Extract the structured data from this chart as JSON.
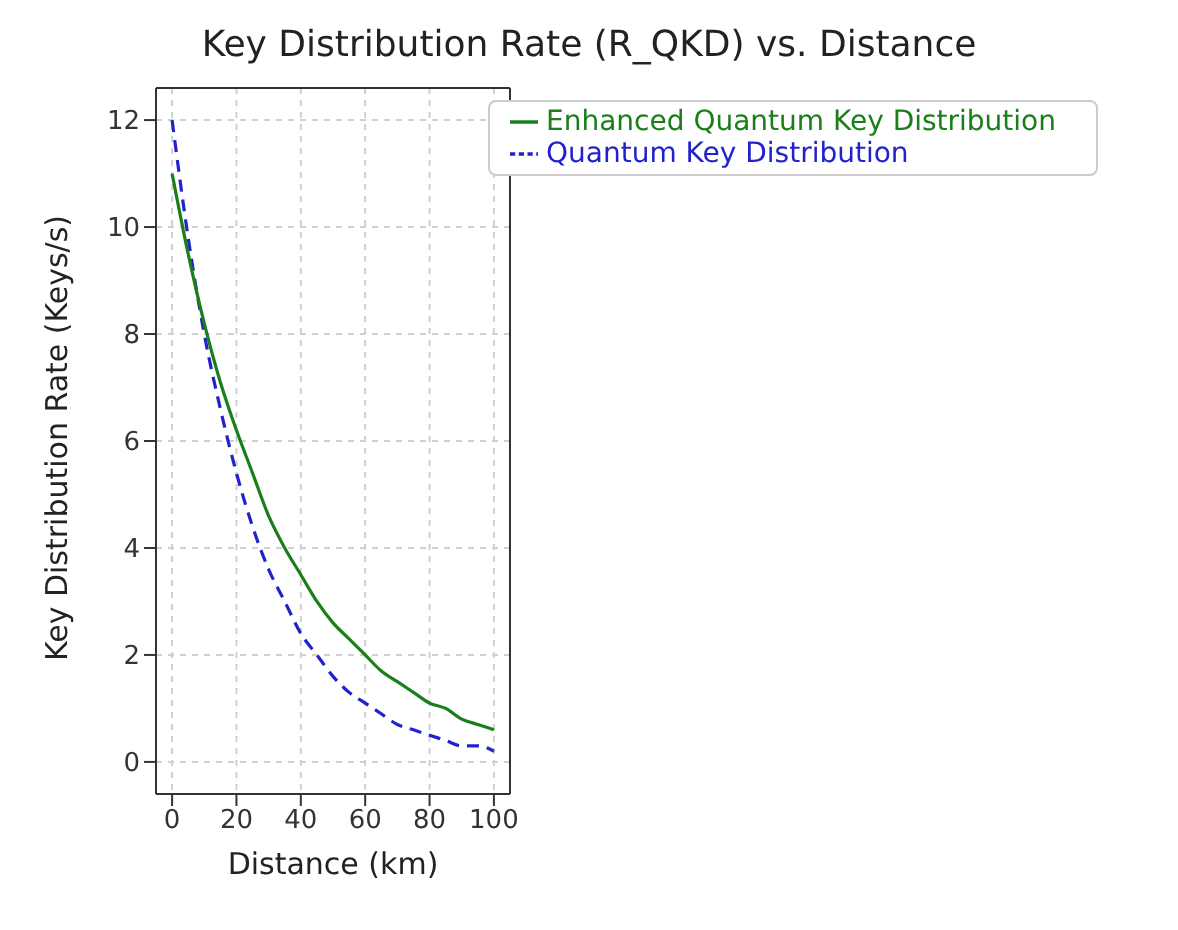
{
  "chart_data": {
    "type": "line",
    "title": "Key Distribution Rate (R_QKD) vs. Distance",
    "xlabel": "Distance (km)",
    "ylabel": "Key Distribution Rate (Keys/s)",
    "x": [
      0,
      5,
      10,
      15,
      20,
      25,
      30,
      35,
      40,
      45,
      50,
      55,
      60,
      65,
      70,
      75,
      80,
      85,
      90,
      95,
      100
    ],
    "series": [
      {
        "name": "Quantum Key Distribution",
        "color": "#2222cc",
        "line_style": "dashed",
        "values": [
          12,
          9.8,
          8.0,
          6.6,
          5.4,
          4.4,
          3.6,
          3.0,
          2.4,
          2.0,
          1.6,
          1.3,
          1.1,
          0.9,
          0.7,
          0.6,
          0.5,
          0.4,
          0.3,
          0.3,
          0.2
        ]
      },
      {
        "name": "Enhanced Quantum Key Distribution",
        "color": "#1a7f1a",
        "line_style": "solid",
        "values": [
          11,
          9.5,
          8.2,
          7.1,
          6.2,
          5.4,
          4.6,
          4.0,
          3.5,
          3.0,
          2.6,
          2.3,
          2.0,
          1.7,
          1.5,
          1.3,
          1.1,
          1.0,
          0.8,
          0.7,
          0.6
        ]
      }
    ],
    "xlim": [
      -5,
      105
    ],
    "xticks": [
      0,
      20,
      40,
      60,
      80,
      100
    ],
    "ylim": [
      -0.6,
      12.6
    ],
    "yticks": [
      0,
      2,
      4,
      6,
      8,
      10,
      12
    ],
    "grid": true,
    "legend": "top right",
    "marker": "none"
  }
}
